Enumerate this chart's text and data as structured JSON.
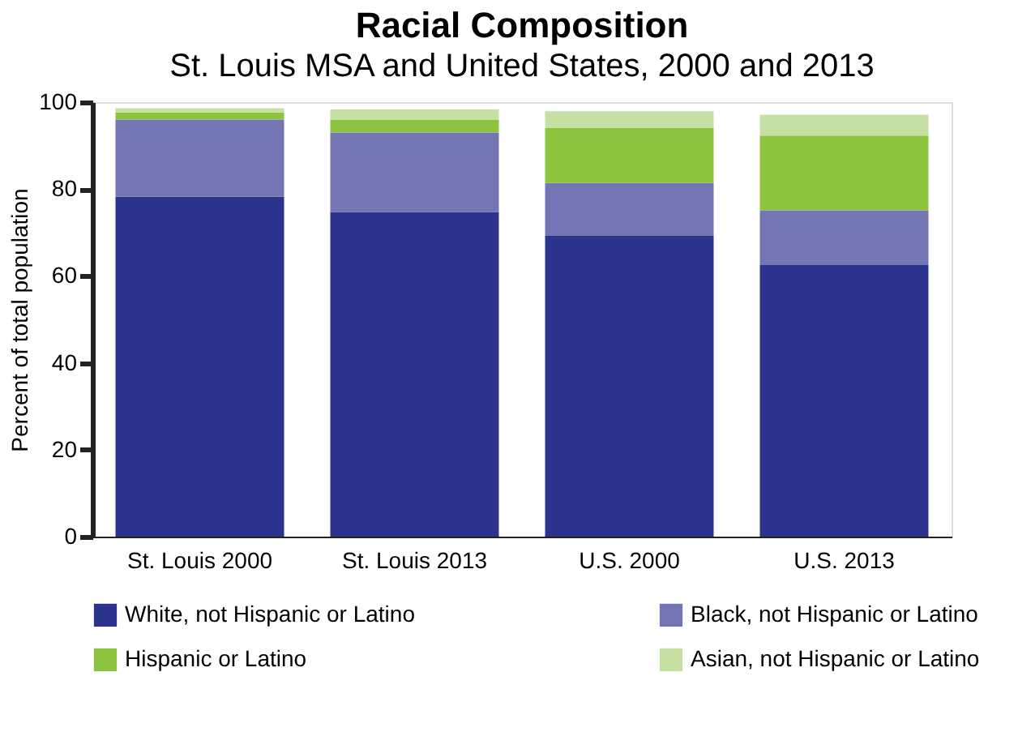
{
  "chart_data": {
    "type": "bar",
    "title": "Racial Composition",
    "subtitle": "St. Louis MSA  and United States, 2000 and 2013",
    "ylabel": "Percent of total population",
    "categories": [
      "St. Louis 2000",
      "St. Louis 2013",
      "U.S. 2000",
      "U.S. 2013"
    ],
    "stacked": true,
    "series": [
      {
        "name": "White, not Hispanic or Latino",
        "color": "#2b338c",
        "values": [
          78.2,
          74.7,
          69.2,
          62.5
        ]
      },
      {
        "name": "Black, not Hispanic or Latino",
        "color": "#7475b5",
        "values": [
          17.8,
          18.3,
          12.2,
          12.6
        ]
      },
      {
        "name": "Hispanic or Latino",
        "color": "#8dc43f",
        "values": [
          1.6,
          3.0,
          12.7,
          17.2
        ]
      },
      {
        "name": "Asian, not Hispanic or Latino",
        "color": "#c6e0a4",
        "values": [
          1.0,
          2.3,
          3.8,
          4.8
        ]
      }
    ],
    "ylim": [
      0,
      100
    ],
    "yticks": [
      0,
      20,
      40,
      60,
      80,
      100
    ],
    "grid": false,
    "legend": "bottom"
  }
}
